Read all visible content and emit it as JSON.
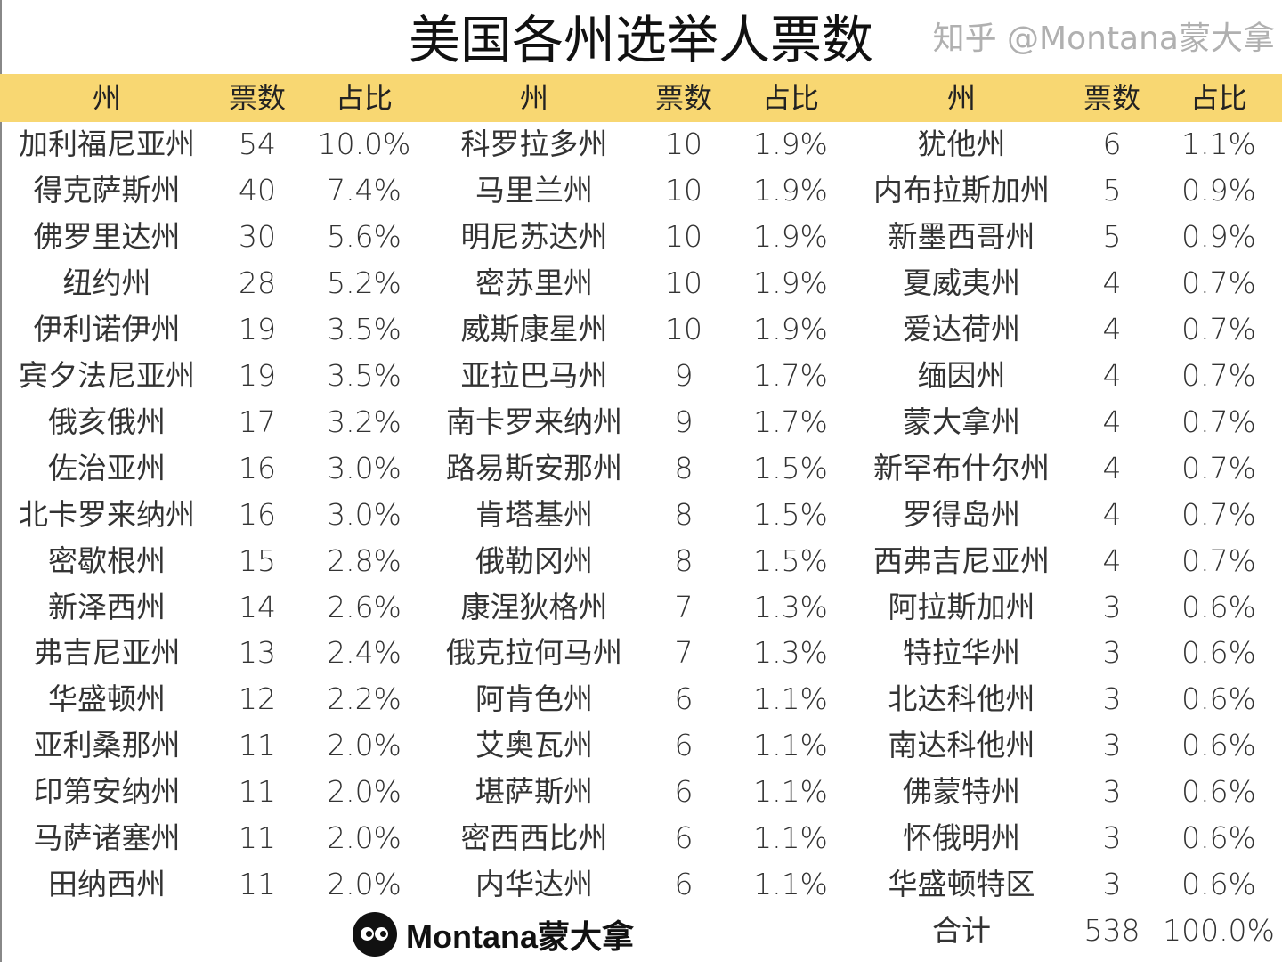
{
  "title": "美国各州选举人票数",
  "header_color": "#F8D772",
  "headers": [
    "州",
    "票数",
    "占比",
    "州",
    "票数",
    "占比",
    "州",
    "票数",
    "占比"
  ],
  "columns": [
    [
      [
        "加利福尼亚州",
        "54",
        "10.0%"
      ],
      [
        "得克萨斯州",
        "40",
        "7.4%"
      ],
      [
        "佛罗里达州",
        "30",
        "5.6%"
      ],
      [
        "纽约州",
        "28",
        "5.2%"
      ],
      [
        "伊利诺伊州",
        "19",
        "3.5%"
      ],
      [
        "宾夕法尼亚州",
        "19",
        "3.5%"
      ],
      [
        "俄亥俄州",
        "17",
        "3.2%"
      ],
      [
        "佐治亚州",
        "16",
        "3.0%"
      ],
      [
        "北卡罗来纳州",
        "16",
        "3.0%"
      ],
      [
        "密歇根州",
        "15",
        "2.8%"
      ],
      [
        "新泽西州",
        "14",
        "2.6%"
      ],
      [
        "弗吉尼亚州",
        "13",
        "2.4%"
      ],
      [
        "华盛顿州",
        "12",
        "2.2%"
      ],
      [
        "亚利桑那州",
        "11",
        "2.0%"
      ],
      [
        "印第安纳州",
        "11",
        "2.0%"
      ],
      [
        "马萨诸塞州",
        "11",
        "2.0%"
      ],
      [
        "田纳西州",
        "11",
        "2.0%"
      ]
    ],
    [
      [
        "科罗拉多州",
        "10",
        "1.9%"
      ],
      [
        "马里兰州",
        "10",
        "1.9%"
      ],
      [
        "明尼苏达州",
        "10",
        "1.9%"
      ],
      [
        "密苏里州",
        "10",
        "1.9%"
      ],
      [
        "威斯康星州",
        "10",
        "1.9%"
      ],
      [
        "亚拉巴马州",
        "9",
        "1.7%"
      ],
      [
        "南卡罗来纳州",
        "9",
        "1.7%"
      ],
      [
        "路易斯安那州",
        "8",
        "1.5%"
      ],
      [
        "肯塔基州",
        "8",
        "1.5%"
      ],
      [
        "俄勒冈州",
        "8",
        "1.5%"
      ],
      [
        "康涅狄格州",
        "7",
        "1.3%"
      ],
      [
        "俄克拉何马州",
        "7",
        "1.3%"
      ],
      [
        "阿肯色州",
        "6",
        "1.1%"
      ],
      [
        "艾奥瓦州",
        "6",
        "1.1%"
      ],
      [
        "堪萨斯州",
        "6",
        "1.1%"
      ],
      [
        "密西西比州",
        "6",
        "1.1%"
      ],
      [
        "内华达州",
        "6",
        "1.1%"
      ]
    ],
    [
      [
        "犹他州",
        "6",
        "1.1%"
      ],
      [
        "内布拉斯加州",
        "5",
        "0.9%"
      ],
      [
        "新墨西哥州",
        "5",
        "0.9%"
      ],
      [
        "夏威夷州",
        "4",
        "0.7%"
      ],
      [
        "爱达荷州",
        "4",
        "0.7%"
      ],
      [
        "缅因州",
        "4",
        "0.7%"
      ],
      [
        "蒙大拿州",
        "4",
        "0.7%"
      ],
      [
        "新罕布什尔州",
        "4",
        "0.7%"
      ],
      [
        "罗得岛州",
        "4",
        "0.7%"
      ],
      [
        "西弗吉尼亚州",
        "4",
        "0.7%"
      ],
      [
        "阿拉斯加州",
        "3",
        "0.6%"
      ],
      [
        "特拉华州",
        "3",
        "0.6%"
      ],
      [
        "北达科他州",
        "3",
        "0.6%"
      ],
      [
        "南达科他州",
        "3",
        "0.6%"
      ],
      [
        "佛蒙特州",
        "3",
        "0.6%"
      ],
      [
        "怀俄明州",
        "3",
        "0.6%"
      ],
      [
        "华盛顿特区",
        "3",
        "0.6%"
      ]
    ]
  ],
  "total": [
    "合计",
    "538",
    "100.0%"
  ],
  "watermark": "知乎 @Montana蒙大拿",
  "logo_text": "Montana蒙大拿"
}
